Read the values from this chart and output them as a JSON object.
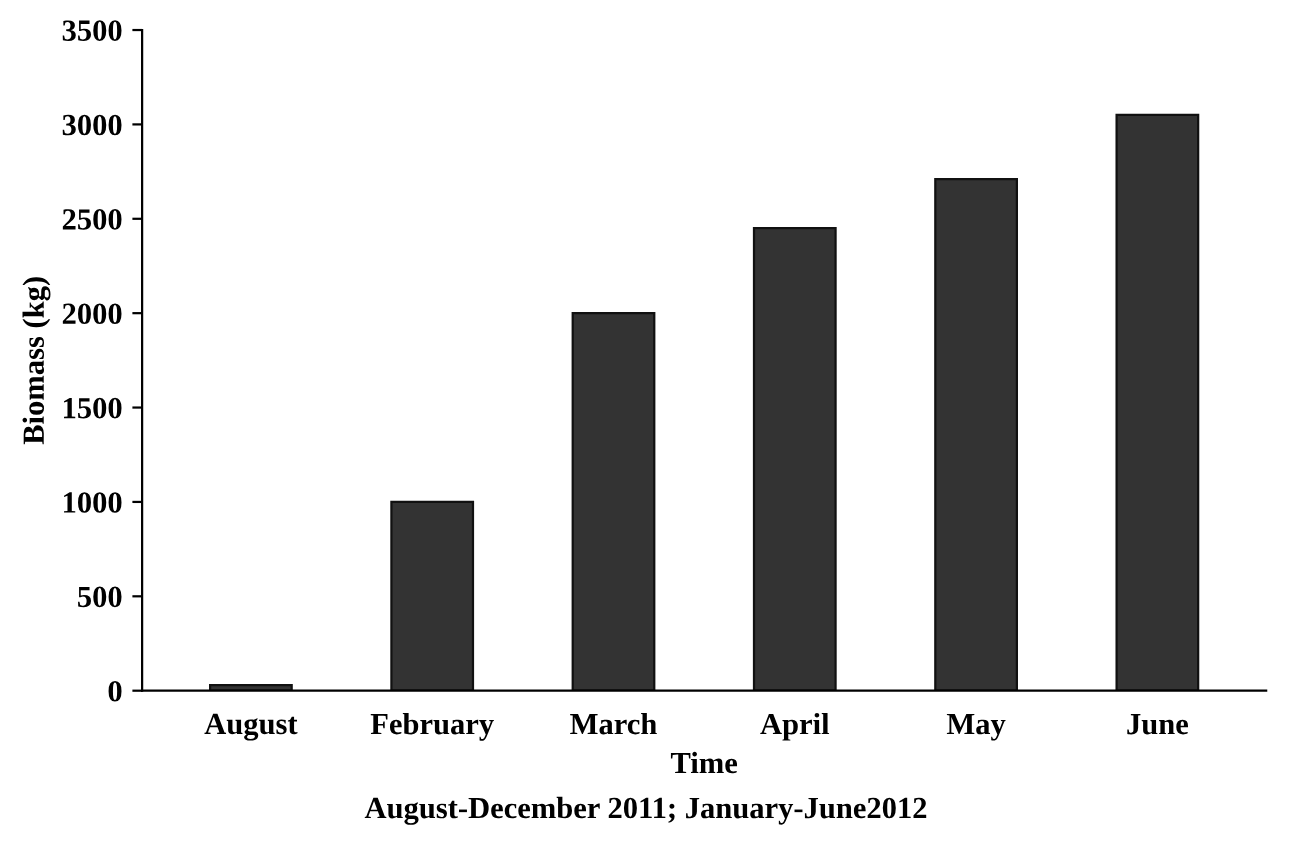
{
  "chart_data": {
    "type": "bar",
    "xlabel": "Time",
    "ylabel": "Biomass (kg)",
    "annotations": [
      "August-December 2011; January-June2012"
    ],
    "categories": [
      "August",
      "February",
      "March",
      "April",
      "May",
      "June"
    ],
    "values": [
      30,
      1000,
      2000,
      2450,
      2710,
      3050
    ],
    "color": "#333333",
    "ylim": [
      0,
      3500
    ],
    "yticks": [
      0,
      500,
      1000,
      1500,
      2000,
      2500,
      3000,
      3500
    ],
    "grid": false,
    "legend": false
  }
}
